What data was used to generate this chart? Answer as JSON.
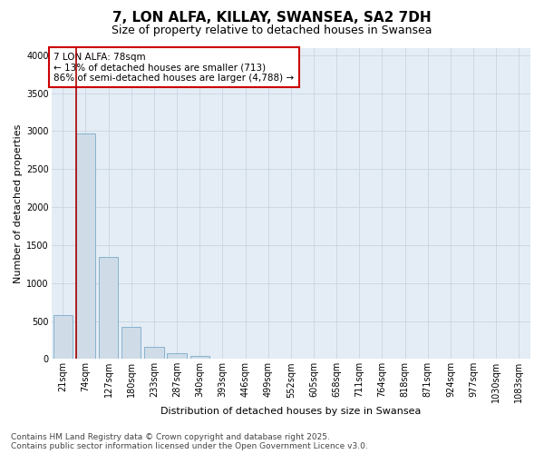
{
  "title": "7, LON ALFA, KILLAY, SWANSEA, SA2 7DH",
  "subtitle": "Size of property relative to detached houses in Swansea",
  "xlabel": "Distribution of detached houses by size in Swansea",
  "ylabel": "Number of detached properties",
  "bar_color": "#cfdce8",
  "bar_edge_color": "#7aaac8",
  "background_color": "#e4edf5",
  "annotation_text": "7 LON ALFA: 78sqm\n← 13% of detached houses are smaller (713)\n86% of semi-detached houses are larger (4,788) →",
  "vline_color": "#aa0000",
  "categories": [
    "21sqm",
    "74sqm",
    "127sqm",
    "180sqm",
    "233sqm",
    "287sqm",
    "340sqm",
    "393sqm",
    "446sqm",
    "499sqm",
    "552sqm",
    "605sqm",
    "658sqm",
    "711sqm",
    "764sqm",
    "818sqm",
    "871sqm",
    "924sqm",
    "977sqm",
    "1030sqm",
    "1083sqm"
  ],
  "values": [
    575,
    2970,
    1340,
    425,
    155,
    75,
    45,
    0,
    0,
    0,
    0,
    0,
    0,
    0,
    0,
    0,
    0,
    0,
    0,
    0,
    0
  ],
  "ylim": [
    0,
    4100
  ],
  "yticks": [
    0,
    500,
    1000,
    1500,
    2000,
    2500,
    3000,
    3500,
    4000
  ],
  "footer_text": "Contains HM Land Registry data © Crown copyright and database right 2025.\nContains public sector information licensed under the Open Government Licence v3.0.",
  "title_fontsize": 11,
  "subtitle_fontsize": 9,
  "xlabel_fontsize": 8,
  "ylabel_fontsize": 8,
  "tick_fontsize": 7,
  "footer_fontsize": 6.5,
  "annotation_fontsize": 7.5
}
